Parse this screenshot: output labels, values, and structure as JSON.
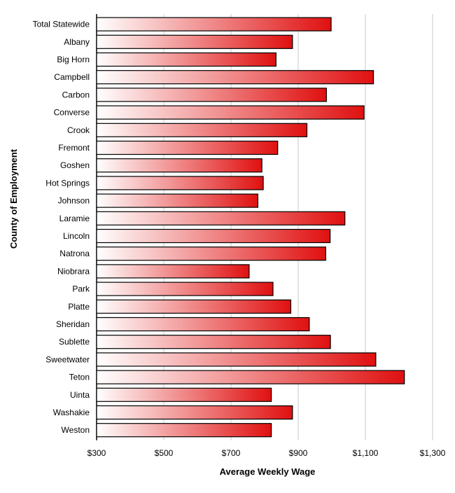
{
  "chart_data": {
    "type": "bar",
    "orientation": "horizontal",
    "categories": [
      "Total Statewide",
      "Albany",
      "Big Horn",
      "Campbell",
      "Carbon",
      "Converse",
      "Crook",
      "Fremont",
      "Goshen",
      "Hot Springs",
      "Johnson",
      "Laramie",
      "Lincoln",
      "Natrona",
      "Niobrara",
      "Park",
      "Platte",
      "Sheridan",
      "Sublette",
      "Sweetwater",
      "Teton",
      "Uinta",
      "Washakie",
      "Weston"
    ],
    "values": [
      998,
      883,
      834,
      1124,
      984,
      1096,
      926,
      839,
      792,
      796,
      780,
      1039,
      995,
      982,
      754,
      825,
      878,
      933,
      996,
      1131,
      1216,
      820,
      883,
      820
    ],
    "xlabel": "Average Weekly Wage",
    "ylabel": "County of Employment",
    "xlim": [
      300,
      1300
    ],
    "xticks": [
      300,
      500,
      700,
      900,
      1100,
      1300
    ],
    "xtick_labels": [
      "$300",
      "$500",
      "$700",
      "$900",
      "$1,100",
      "$1,300"
    ],
    "grid": "vertical",
    "legend": "none",
    "colors": {
      "bar_start": "#ffffff",
      "bar_end": "#e01010",
      "bar_border": "#000000",
      "grid": "#c8c8c8"
    }
  }
}
